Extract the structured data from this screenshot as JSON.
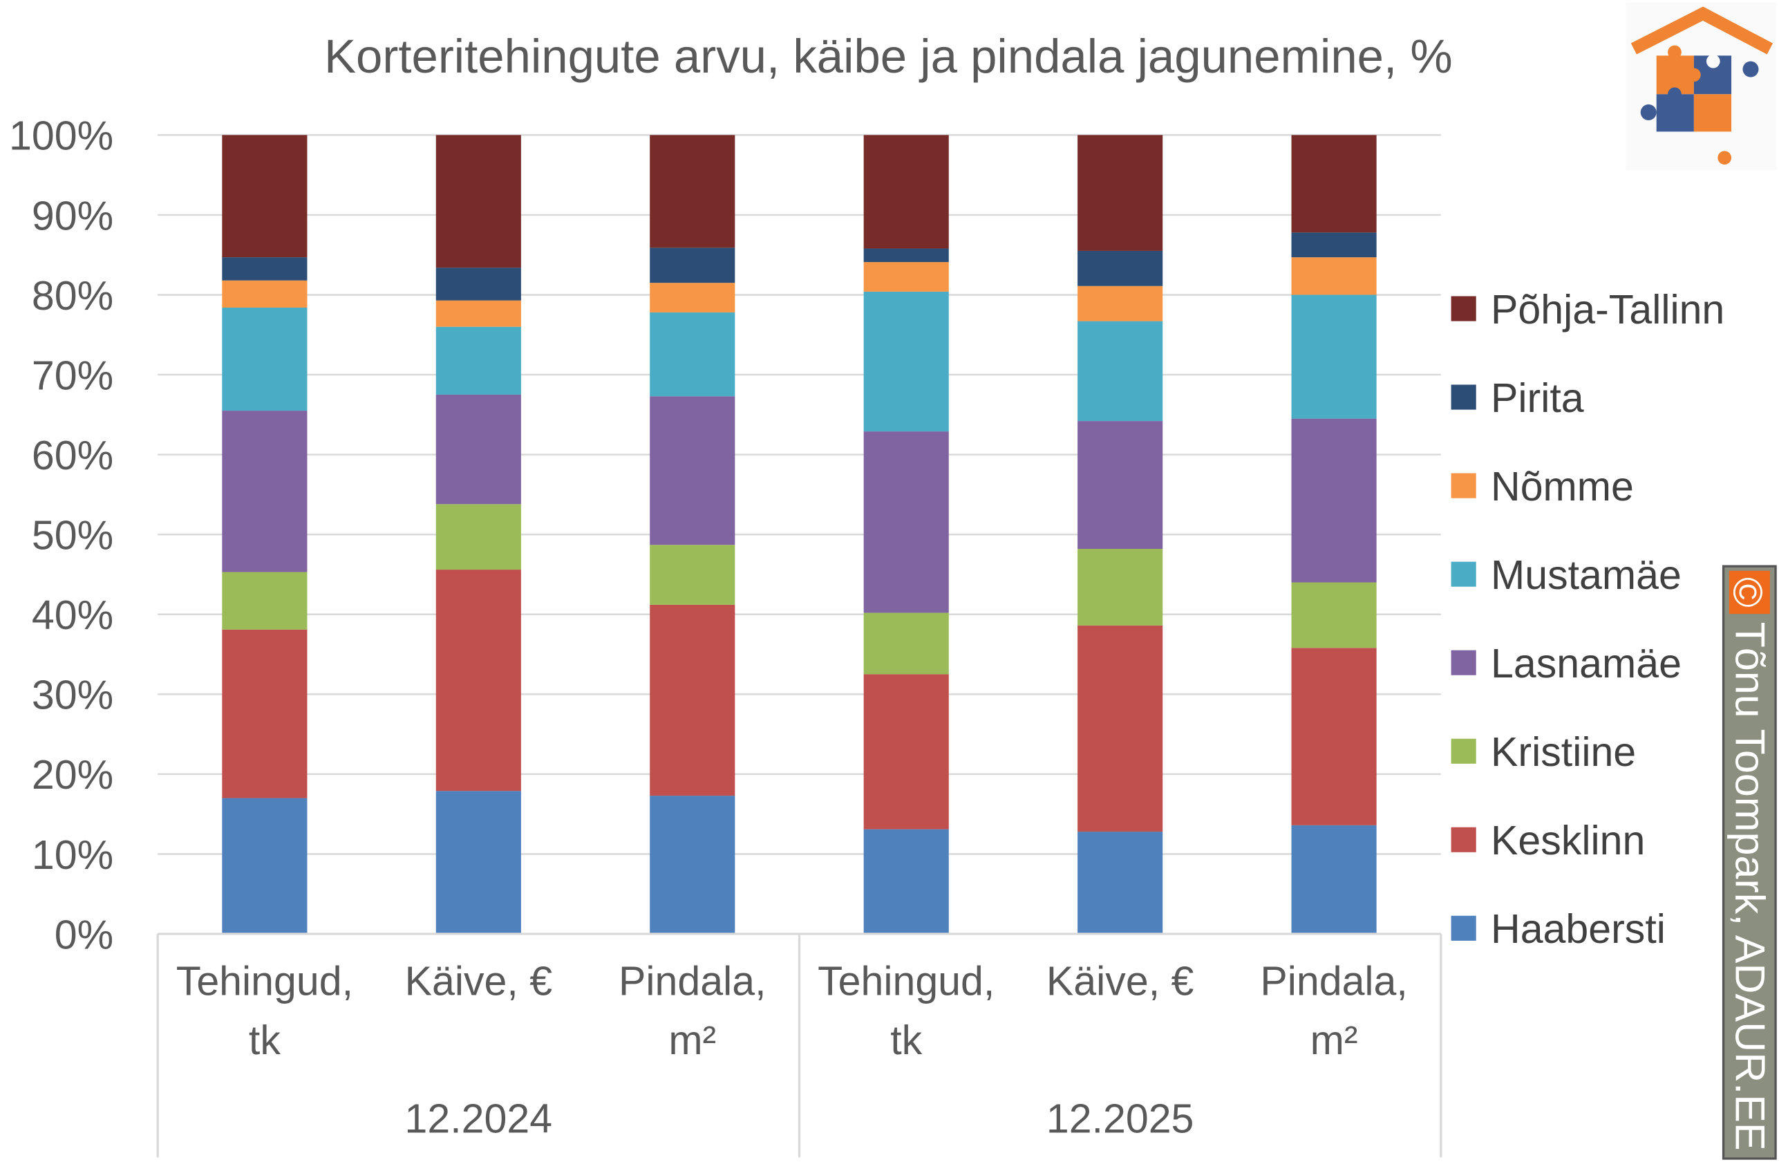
{
  "chart_data": {
    "type": "bar",
    "stacked": "100%",
    "title": "Korteritehingute arvu, käibe ja pindala jagunemine, %",
    "categories": [
      {
        "line1": "Tehingud,",
        "line2": "tk",
        "group": "12.2024"
      },
      {
        "line1": "Käive, €",
        "line2": "",
        "group": "12.2024"
      },
      {
        "line1": "Pindala,",
        "line2": "m²",
        "group": "12.2024"
      },
      {
        "line1": "Tehingud,",
        "line2": "tk",
        "group": "12.2025"
      },
      {
        "line1": "Käive, €",
        "line2": "",
        "group": "12.2025"
      },
      {
        "line1": "Pindala,",
        "line2": "m²",
        "group": "12.2025"
      }
    ],
    "groups": [
      "12.2024",
      "12.2025"
    ],
    "ylim": [
      0,
      100
    ],
    "yticks": [
      "0%",
      "10%",
      "20%",
      "30%",
      "40%",
      "50%",
      "60%",
      "70%",
      "80%",
      "90%",
      "100%"
    ],
    "grid": true,
    "legend_position": "right",
    "series": [
      {
        "name": "Haabersti",
        "color": "#4F81BD",
        "values": [
          17.0,
          17.9,
          17.3,
          13.1,
          12.8,
          13.6
        ]
      },
      {
        "name": "Kesklinn",
        "color": "#C0504D",
        "values": [
          21.1,
          27.7,
          23.9,
          19.4,
          25.8,
          22.2
        ]
      },
      {
        "name": "Kristiine",
        "color": "#9BBB59",
        "values": [
          7.2,
          8.2,
          7.5,
          7.7,
          9.6,
          8.2
        ]
      },
      {
        "name": "Lasnamäe",
        "color": "#8064A2",
        "values": [
          20.2,
          13.7,
          18.6,
          22.7,
          16.0,
          20.5
        ]
      },
      {
        "name": "Mustamäe",
        "color": "#4BACC6",
        "values": [
          12.9,
          8.5,
          10.5,
          17.5,
          12.5,
          15.5
        ]
      },
      {
        "name": "Nõmme",
        "color": "#F79646",
        "values": [
          3.4,
          3.3,
          3.7,
          3.7,
          4.4,
          4.7
        ]
      },
      {
        "name": "Pirita",
        "color": "#2C4D75",
        "values": [
          2.9,
          4.1,
          4.4,
          1.7,
          4.4,
          3.1
        ]
      },
      {
        "name": "Põhja-Tallinn",
        "color": "#772C2A",
        "values": [
          15.3,
          16.6,
          14.1,
          14.2,
          14.5,
          12.2
        ]
      }
    ]
  },
  "watermark": {
    "symbol": "©",
    "text": "Tõnu Toompark, ADAUR.EE"
  },
  "logo": {
    "icon": "house-puzzle-logo",
    "colors": [
      "#F08432",
      "#3F5B94"
    ]
  }
}
